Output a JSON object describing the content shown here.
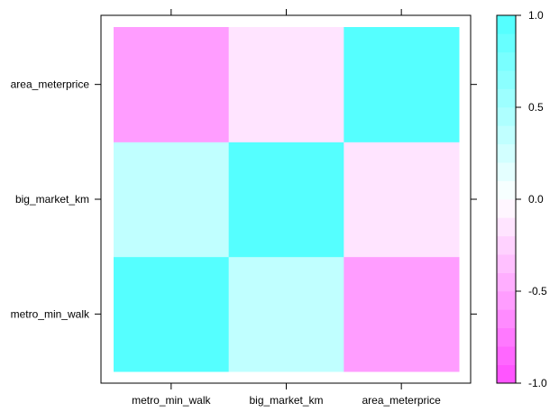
{
  "chart_data": {
    "type": "heatmap",
    "x_categories": [
      "metro_min_walk",
      "big_market_km",
      "area_meterprice"
    ],
    "y_categories": [
      "metro_min_walk",
      "big_market_km",
      "area_meterprice"
    ],
    "values": [
      [
        1.0,
        0.35,
        -0.6
      ],
      [
        0.35,
        1.0,
        -0.15
      ],
      [
        -0.6,
        -0.15,
        1.0
      ]
    ],
    "colorbar": {
      "range": [
        -1.0,
        1.0
      ],
      "ticks": [
        "1.0",
        "0.5",
        "0.0",
        "-0.5",
        "-1.0"
      ],
      "low_color": "#ff55ff",
      "mid_color": "#ffffff",
      "high_color": "#55ffff"
    }
  }
}
